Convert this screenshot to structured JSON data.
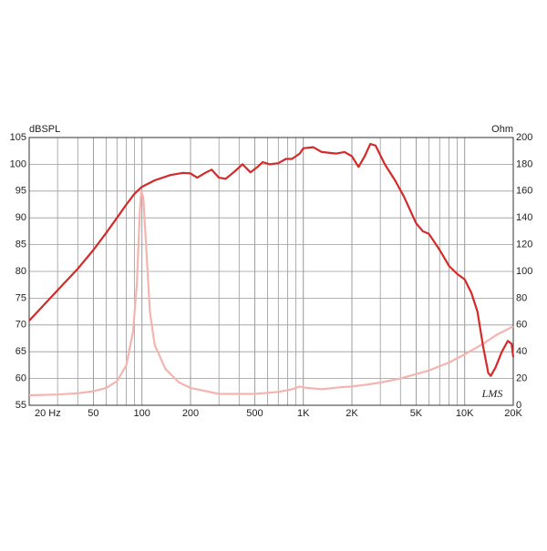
{
  "chart_data": {
    "type": "line",
    "xscale": "log",
    "grid": true,
    "y_label": "dBSPL",
    "y2_label": "Ohm",
    "annotation": "LMS",
    "xlim": [
      20,
      20000
    ],
    "xticks": [
      {
        "value": 20,
        "label": "20 Hz"
      },
      50,
      100,
      200,
      500,
      {
        "value": 1000,
        "label": "1K"
      },
      {
        "value": 2000,
        "label": "2K"
      },
      {
        "value": 5000,
        "label": "5K"
      },
      {
        "value": 10000,
        "label": "10K"
      },
      {
        "value": 20000,
        "label": "20K"
      }
    ],
    "ylim": [
      55,
      105
    ],
    "yticks": [
      55,
      60,
      65,
      70,
      75,
      80,
      85,
      90,
      95,
      100,
      105
    ],
    "y2lim": [
      0,
      200
    ],
    "y2ticks": [
      0,
      20,
      40,
      60,
      80,
      100,
      120,
      140,
      160,
      180,
      200
    ],
    "series": [
      {
        "color": "#f4b4b0",
        "axis": "y2",
        "x": [
          20,
          30,
          40,
          50,
          60,
          70,
          80,
          88,
          93,
          97,
          99,
          102,
          106,
          112,
          120,
          140,
          170,
          200,
          300,
          500,
          700,
          850,
          950,
          1050,
          1300,
          1700,
          2000,
          2500,
          3000,
          4000,
          6000,
          8000,
          10000,
          13000,
          16000,
          20000
        ],
        "values": [
          7.5,
          8,
          9,
          10.5,
          13,
          18,
          30,
          55,
          90,
          145,
          160,
          155,
          120,
          70,
          45,
          27,
          17,
          13,
          8.5,
          8.5,
          10,
          12,
          14,
          13,
          12,
          13.5,
          14,
          15.5,
          17,
          20,
          26,
          32,
          38,
          46,
          53,
          59
        ]
      },
      {
        "color": "#d42a2a",
        "axis": "y",
        "x": [
          20,
          30,
          40,
          50,
          60,
          70,
          80,
          90,
          100,
          120,
          150,
          180,
          200,
          220,
          250,
          270,
          300,
          330,
          370,
          420,
          470,
          520,
          560,
          620,
          700,
          780,
          850,
          950,
          1000,
          1150,
          1300,
          1600,
          1800,
          2000,
          2200,
          2400,
          2600,
          2800,
          3200,
          3700,
          4200,
          5000,
          5500,
          6000,
          7000,
          8000,
          9000,
          10000,
          11000,
          12000,
          13000,
          14000,
          14500,
          15500,
          17000,
          18500,
          19500,
          20000
        ],
        "values": [
          70.8,
          76.5,
          80.5,
          84,
          87.2,
          90,
          92.5,
          94.5,
          95.8,
          97,
          98,
          98.4,
          98.3,
          97.5,
          98.5,
          99,
          97.5,
          97.3,
          98.5,
          100,
          98.5,
          99.5,
          100.4,
          100,
          100.2,
          101,
          101,
          102,
          103,
          103.2,
          102.3,
          102,
          102.3,
          101.5,
          99.5,
          101.5,
          103.8,
          103.5,
          100,
          97,
          94,
          89,
          87.5,
          87,
          84,
          81,
          79.5,
          78.5,
          76,
          72.5,
          66,
          61,
          60.5,
          62,
          65,
          67,
          66.5,
          64
        ]
      }
    ]
  }
}
